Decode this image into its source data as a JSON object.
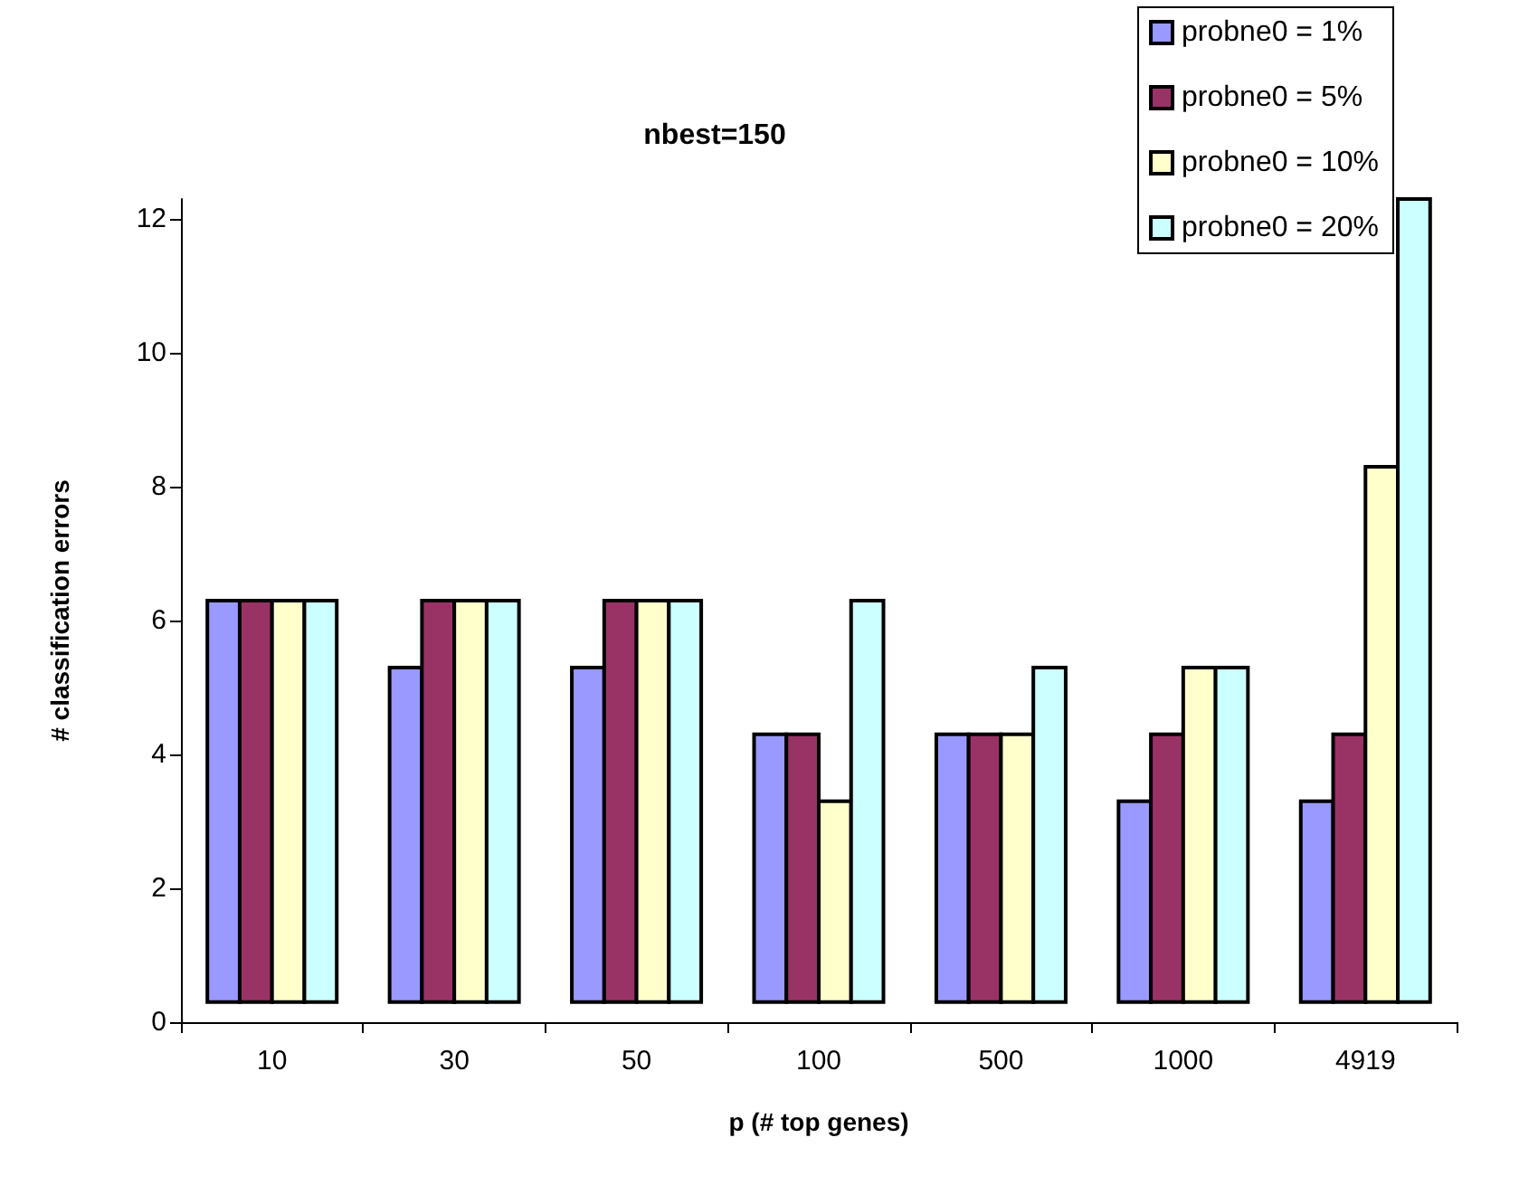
{
  "chart_data": {
    "type": "bar",
    "title": "nbest=150",
    "xlabel": "p (# top genes)",
    "ylabel": "# classification errors",
    "categories": [
      "10",
      "30",
      "50",
      "100",
      "500",
      "1000",
      "4919"
    ],
    "series": [
      {
        "name": "probne0 = 1%",
        "color": "#9999ff",
        "values": [
          6,
          5,
          5,
          4,
          4,
          3,
          3
        ],
        "base": [
          0.3,
          0.3,
          0.3,
          0.3,
          0.3,
          0.3,
          0.3
        ]
      },
      {
        "name": "probne0 = 5%",
        "color": "#993366",
        "values": [
          6,
          6,
          6,
          4,
          4,
          4,
          4
        ],
        "base": [
          0.3,
          0.3,
          0.3,
          0.3,
          0.3,
          0.3,
          0.3
        ]
      },
      {
        "name": "probne0 = 10%",
        "color": "#ffffcc",
        "values": [
          6,
          6,
          6,
          3,
          4,
          5,
          8
        ],
        "base": [
          0.3,
          0.3,
          0.3,
          0.3,
          0.3,
          0.3,
          0.3
        ]
      },
      {
        "name": "probne0 = 20%",
        "color": "#ccffff",
        "values": [
          6,
          6,
          6,
          6,
          5,
          5,
          12
        ],
        "base": [
          0.3,
          0.3,
          0.3,
          0.3,
          0.3,
          0.3,
          0.3
        ]
      }
    ],
    "ylim": [
      0,
      12.3
    ],
    "yticks": [
      0,
      2,
      4,
      6,
      8,
      10,
      12
    ],
    "grid": false,
    "legend": "top right"
  }
}
